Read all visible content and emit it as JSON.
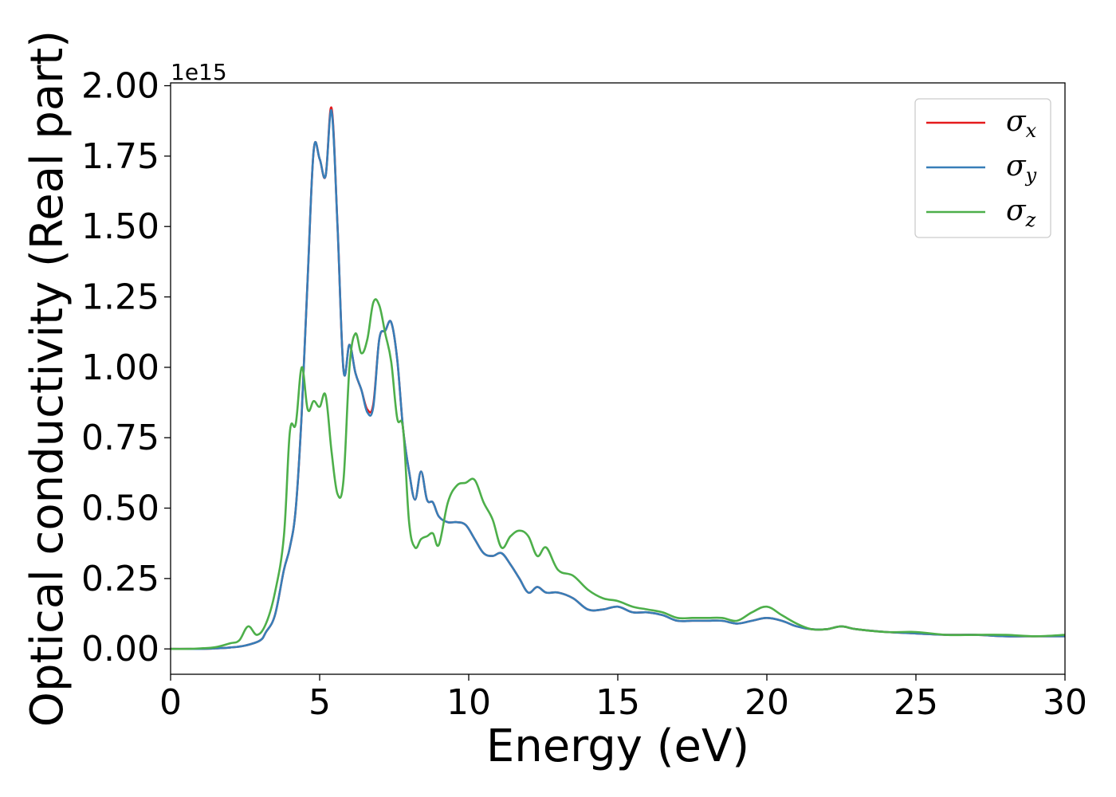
{
  "chart_data": {
    "type": "line",
    "title": "",
    "xlabel": "Energy (eV)",
    "ylabel": "Optical conductivity (Real part)",
    "y_offset_text": "1e15",
    "xlim": [
      0,
      30
    ],
    "ylim": [
      -0.09,
      2.01
    ],
    "xticks": [
      0,
      5,
      10,
      15,
      20,
      25,
      30
    ],
    "xtick_labels": [
      "0",
      "5",
      "10",
      "15",
      "20",
      "25",
      "30"
    ],
    "yticks": [
      0.0,
      0.25,
      0.5,
      0.75,
      1.0,
      1.25,
      1.5,
      1.75,
      2.0
    ],
    "ytick_labels": [
      "0.00",
      "0.25",
      "0.50",
      "0.75",
      "1.00",
      "1.25",
      "1.50",
      "1.75",
      "2.00"
    ],
    "grid": false,
    "legend_position": "upper-right",
    "series": [
      {
        "name": "σx",
        "symbol": "σ",
        "subscript": "x",
        "color": "#e41a1c",
        "x": [
          0,
          0.5,
          1,
          1.5,
          2,
          2.5,
          3,
          3.2,
          3.5,
          3.8,
          4.0,
          4.2,
          4.4,
          4.6,
          4.8,
          5.0,
          5.2,
          5.4,
          5.6,
          5.8,
          6.0,
          6.2,
          6.4,
          6.6,
          6.8,
          7.0,
          7.2,
          7.4,
          7.6,
          7.8,
          8.0,
          8.2,
          8.4,
          8.6,
          8.8,
          9.0,
          9.3,
          9.6,
          9.9,
          10.2,
          10.5,
          10.8,
          11.1,
          11.4,
          11.7,
          12.0,
          12.3,
          12.6,
          13.0,
          13.5,
          14.0,
          14.5,
          15.0,
          15.5,
          16.0,
          16.5,
          17.0,
          17.5,
          18.0,
          18.5,
          19.0,
          19.5,
          20.0,
          20.5,
          21.0,
          21.5,
          22.0,
          22.5,
          23.0,
          24.0,
          25.0,
          26.0,
          27.0,
          28.0,
          29.0,
          30.0
        ],
        "y": [
          0.0,
          0.0,
          0.0,
          0.002,
          0.005,
          0.012,
          0.03,
          0.06,
          0.12,
          0.28,
          0.36,
          0.5,
          0.84,
          1.32,
          1.77,
          1.74,
          1.68,
          1.92,
          1.5,
          0.99,
          1.08,
          0.98,
          0.92,
          0.85,
          0.87,
          1.1,
          1.13,
          1.16,
          1.03,
          0.78,
          0.63,
          0.53,
          0.63,
          0.53,
          0.52,
          0.47,
          0.45,
          0.45,
          0.44,
          0.39,
          0.34,
          0.33,
          0.34,
          0.3,
          0.25,
          0.2,
          0.22,
          0.2,
          0.2,
          0.18,
          0.14,
          0.14,
          0.15,
          0.13,
          0.13,
          0.12,
          0.1,
          0.1,
          0.1,
          0.1,
          0.09,
          0.1,
          0.11,
          0.1,
          0.08,
          0.07,
          0.07,
          0.08,
          0.07,
          0.06,
          0.055,
          0.05,
          0.05,
          0.045,
          0.045,
          0.045
        ]
      },
      {
        "name": "σy",
        "symbol": "σ",
        "subscript": "y",
        "color": "#377eb8",
        "x": [
          0,
          0.5,
          1,
          1.5,
          2,
          2.5,
          3,
          3.2,
          3.5,
          3.8,
          4.0,
          4.2,
          4.4,
          4.6,
          4.8,
          5.0,
          5.2,
          5.4,
          5.6,
          5.8,
          6.0,
          6.2,
          6.4,
          6.6,
          6.8,
          7.0,
          7.2,
          7.4,
          7.6,
          7.8,
          8.0,
          8.2,
          8.4,
          8.6,
          8.8,
          9.0,
          9.3,
          9.6,
          9.9,
          10.2,
          10.5,
          10.8,
          11.1,
          11.4,
          11.7,
          12.0,
          12.3,
          12.6,
          13.0,
          13.5,
          14.0,
          14.5,
          15.0,
          15.5,
          16.0,
          16.5,
          17.0,
          17.5,
          18.0,
          18.5,
          19.0,
          19.5,
          20.0,
          20.5,
          21.0,
          21.5,
          22.0,
          22.5,
          23.0,
          24.0,
          25.0,
          26.0,
          27.0,
          28.0,
          29.0,
          30.0
        ],
        "y": [
          0.0,
          0.0,
          0.0,
          0.002,
          0.005,
          0.012,
          0.03,
          0.06,
          0.12,
          0.28,
          0.36,
          0.5,
          0.84,
          1.32,
          1.77,
          1.74,
          1.68,
          1.91,
          1.5,
          0.99,
          1.08,
          0.98,
          0.92,
          0.84,
          0.86,
          1.1,
          1.13,
          1.16,
          1.03,
          0.78,
          0.63,
          0.53,
          0.63,
          0.53,
          0.52,
          0.47,
          0.45,
          0.45,
          0.44,
          0.39,
          0.34,
          0.33,
          0.34,
          0.3,
          0.25,
          0.2,
          0.22,
          0.2,
          0.2,
          0.18,
          0.14,
          0.14,
          0.15,
          0.13,
          0.13,
          0.12,
          0.1,
          0.1,
          0.1,
          0.1,
          0.09,
          0.1,
          0.11,
          0.1,
          0.08,
          0.07,
          0.07,
          0.08,
          0.07,
          0.06,
          0.055,
          0.05,
          0.05,
          0.045,
          0.045,
          0.045
        ]
      },
      {
        "name": "σz",
        "symbol": "σ",
        "subscript": "z",
        "color": "#4daf4a",
        "x": [
          0,
          0.5,
          1,
          1.5,
          2,
          2.3,
          2.6,
          2.9,
          3.2,
          3.5,
          3.8,
          4.0,
          4.2,
          4.4,
          4.6,
          4.8,
          5.0,
          5.2,
          5.4,
          5.6,
          5.8,
          6.0,
          6.2,
          6.4,
          6.6,
          6.8,
          7.0,
          7.2,
          7.4,
          7.6,
          7.8,
          8.0,
          8.2,
          8.4,
          8.6,
          8.8,
          9.0,
          9.3,
          9.6,
          9.9,
          10.2,
          10.5,
          10.8,
          11.1,
          11.4,
          11.7,
          12.0,
          12.3,
          12.6,
          13.0,
          13.5,
          14.0,
          14.5,
          15.0,
          15.5,
          16.0,
          16.5,
          17.0,
          17.5,
          18.0,
          18.5,
          19.0,
          19.5,
          20.0,
          20.5,
          21.0,
          21.5,
          22.0,
          22.5,
          23.0,
          24.0,
          25.0,
          26.0,
          27.0,
          28.0,
          29.0,
          30.0
        ],
        "y": [
          0.0,
          0.0,
          0.002,
          0.006,
          0.02,
          0.03,
          0.08,
          0.05,
          0.09,
          0.2,
          0.4,
          0.77,
          0.8,
          1.0,
          0.85,
          0.88,
          0.86,
          0.9,
          0.7,
          0.55,
          0.6,
          1.0,
          1.12,
          1.05,
          1.1,
          1.23,
          1.22,
          1.12,
          1.02,
          0.82,
          0.78,
          0.45,
          0.36,
          0.39,
          0.4,
          0.41,
          0.37,
          0.52,
          0.58,
          0.59,
          0.6,
          0.52,
          0.46,
          0.36,
          0.4,
          0.42,
          0.4,
          0.33,
          0.36,
          0.28,
          0.26,
          0.21,
          0.18,
          0.17,
          0.15,
          0.14,
          0.13,
          0.11,
          0.11,
          0.11,
          0.11,
          0.1,
          0.13,
          0.15,
          0.12,
          0.09,
          0.07,
          0.07,
          0.08,
          0.07,
          0.06,
          0.06,
          0.05,
          0.05,
          0.05,
          0.045,
          0.05
        ]
      }
    ]
  }
}
